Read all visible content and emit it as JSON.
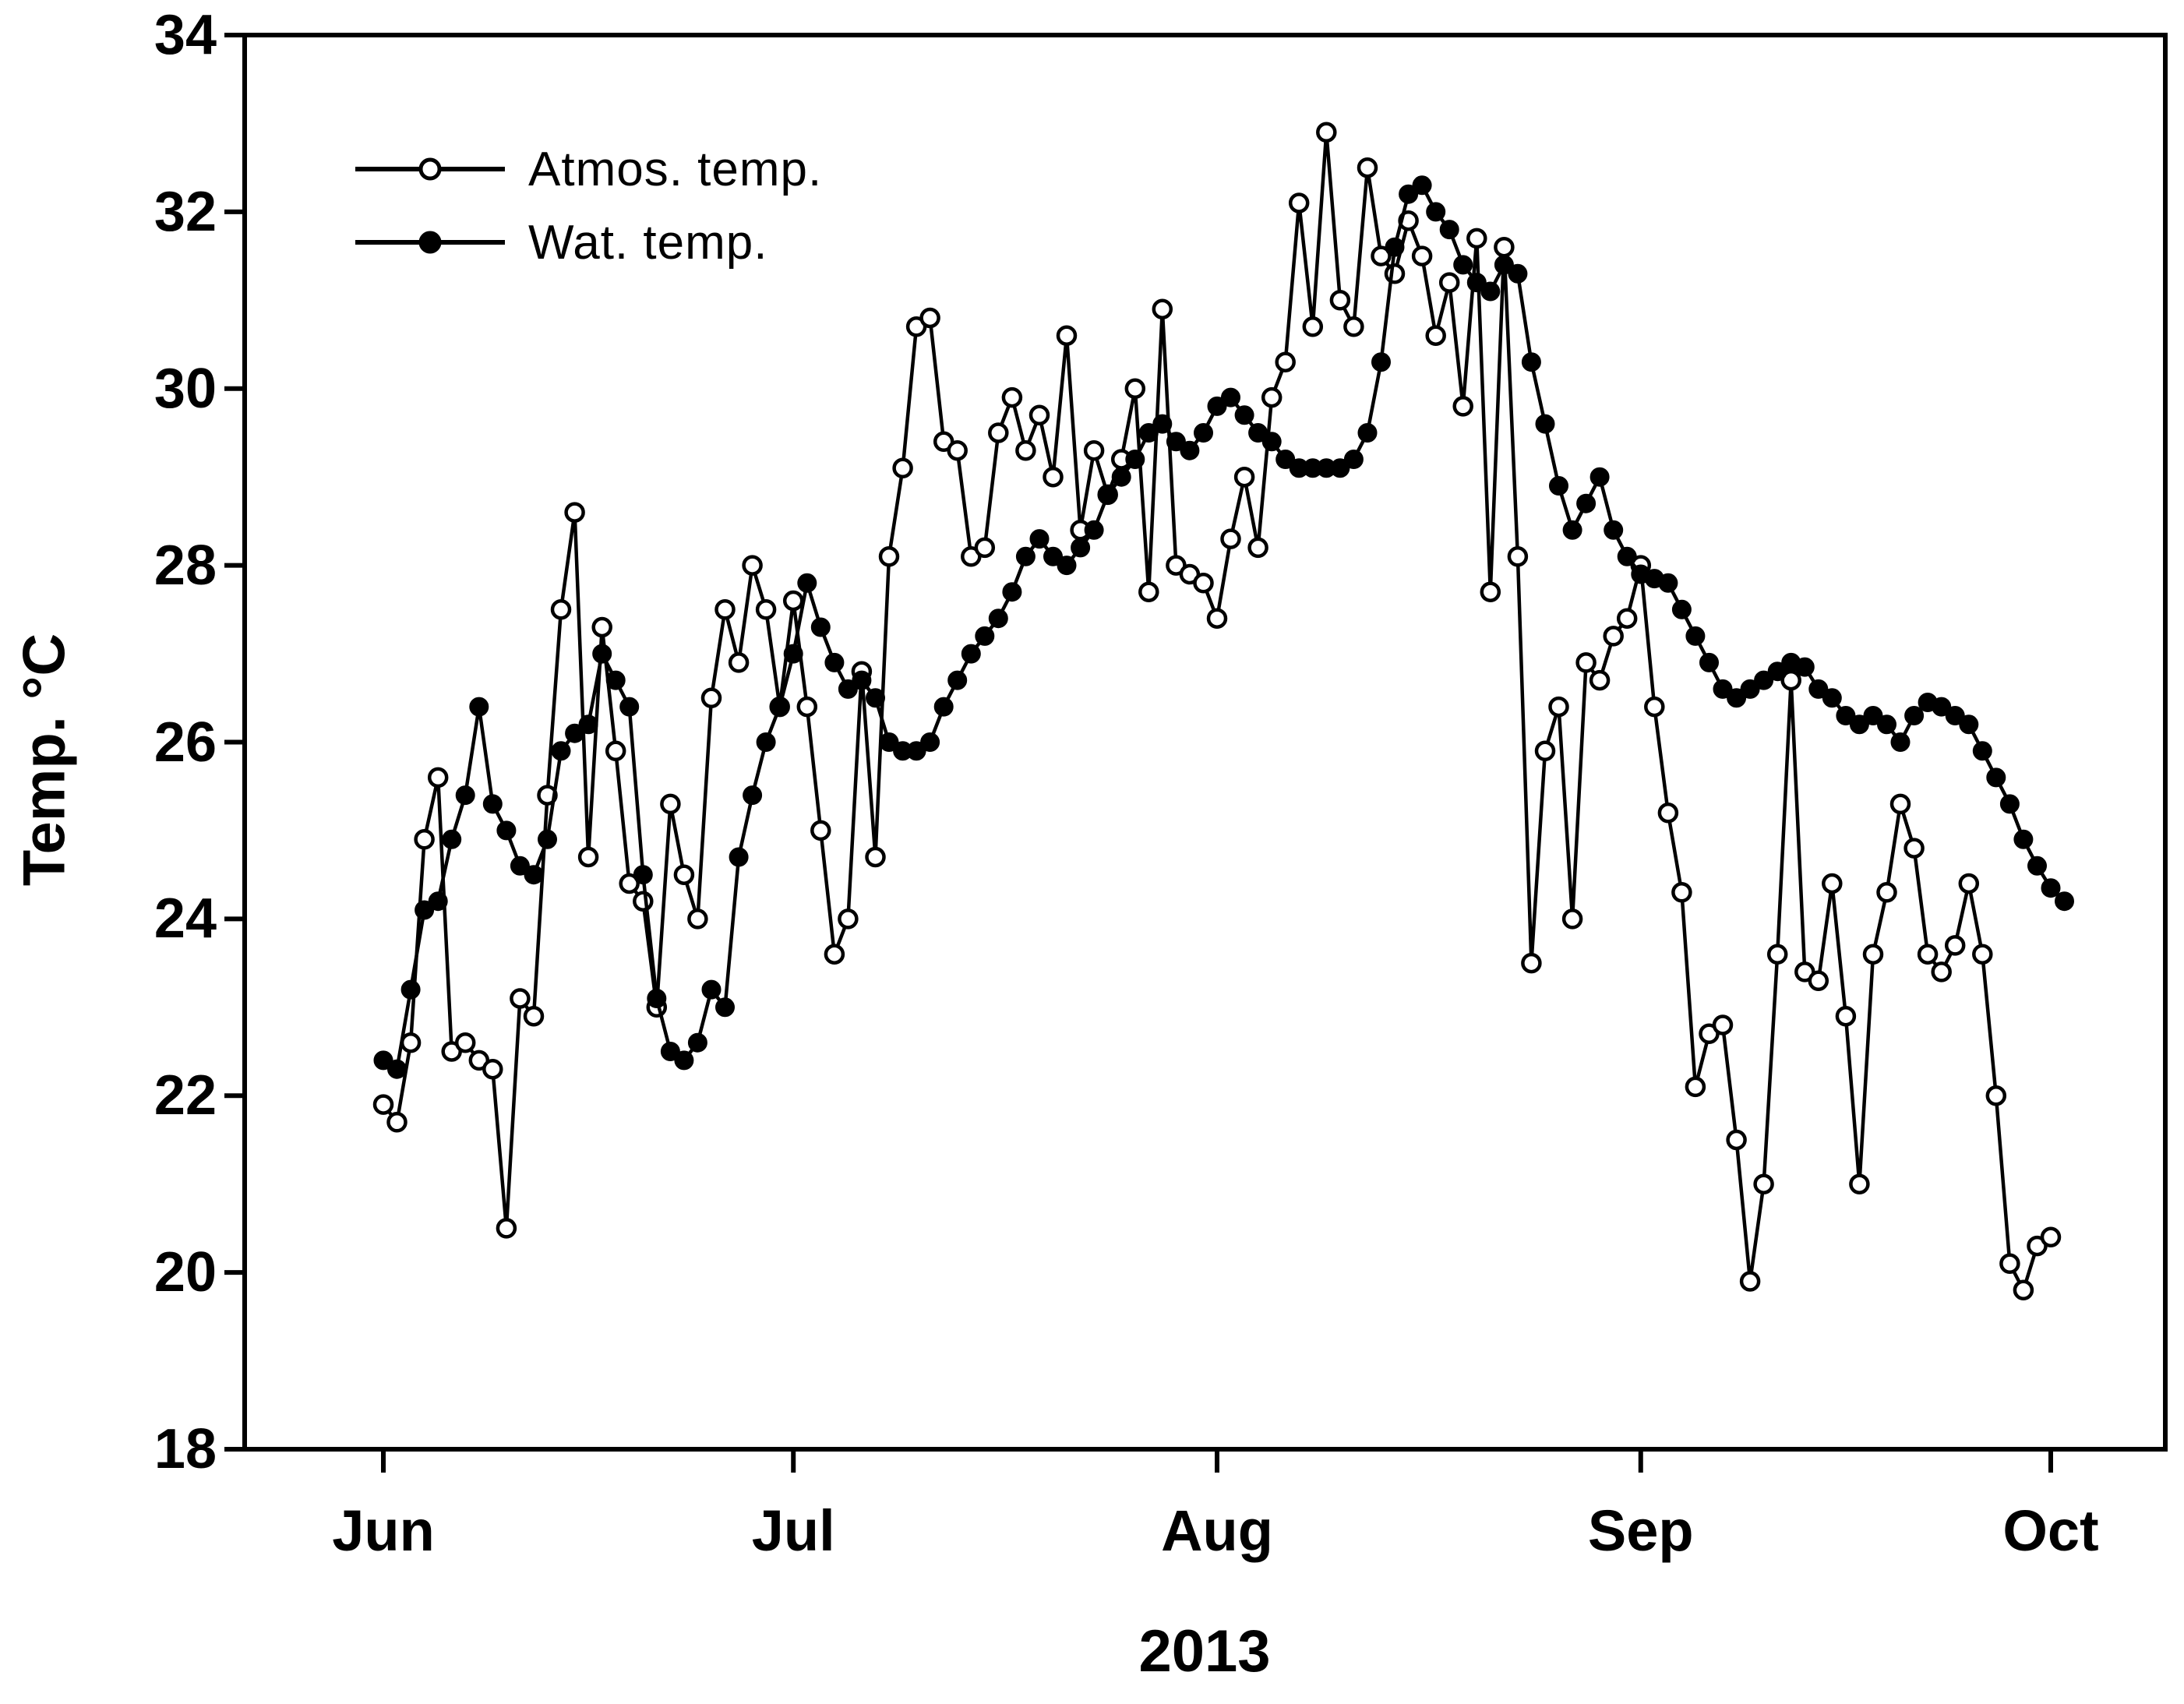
{
  "chart_data": {
    "type": "line",
    "title": "",
    "xlabel_year": "2013",
    "ylabel": "Temp. °C",
    "x_tick_labels": [
      "Jun",
      "Jul",
      "Aug",
      "Sep",
      "Oct"
    ],
    "x_tick_days": [
      0,
      30,
      61,
      92,
      122
    ],
    "x_unit": "daily observations starting Jun 1, 2013 (value index = days since Jun 1)",
    "ylim": [
      18,
      34
    ],
    "y_ticks": [
      34,
      32,
      30,
      28,
      26,
      24,
      22,
      20,
      18
    ],
    "grid": false,
    "background_color": "#ffffff",
    "axis_color": "#000000",
    "legend_position": "upper-left-inside",
    "series": [
      {
        "name": "Atmos. temp.",
        "marker": "open-circle",
        "color": "#000000",
        "values": [
          21.9,
          21.7,
          22.6,
          24.9,
          25.6,
          22.5,
          22.6,
          22.4,
          22.3,
          20.5,
          23.1,
          22.9,
          25.4,
          27.5,
          28.6,
          24.7,
          27.3,
          25.9,
          24.4,
          24.2,
          23.0,
          25.3,
          24.5,
          24.0,
          26.5,
          27.5,
          26.9,
          28.0,
          27.5,
          26.4,
          27.6,
          26.4,
          25.0,
          23.6,
          24.0,
          26.8,
          24.7,
          28.1,
          29.1,
          30.7,
          30.8,
          29.4,
          29.3,
          28.1,
          28.2,
          29.5,
          29.9,
          29.3,
          29.7,
          29.0,
          30.6,
          28.4,
          29.3,
          28.8,
          29.2,
          30.0,
          27.7,
          30.9,
          28.0,
          27.9,
          27.8,
          27.4,
          28.3,
          29.0,
          28.2,
          29.9,
          30.3,
          32.1,
          30.7,
          32.9,
          31.0,
          30.7,
          32.5,
          31.5,
          31.3,
          31.9,
          31.5,
          30.6,
          31.2,
          29.8,
          31.7,
          27.7,
          31.6,
          28.1,
          23.5,
          25.9,
          26.4,
          24.0,
          26.9,
          26.7,
          27.2,
          27.4,
          28.0,
          26.4,
          25.2,
          24.3,
          22.1,
          22.7,
          22.8,
          21.5,
          19.9,
          21.0,
          23.6,
          26.7,
          23.4,
          23.3,
          24.4,
          22.9,
          21.0,
          23.6,
          24.3,
          25.3,
          24.8,
          23.6,
          23.4,
          23.7,
          24.4,
          23.6,
          22.0,
          20.1,
          19.8,
          20.3,
          20.4
        ]
      },
      {
        "name": "Wat. temp.",
        "marker": "filled-circle",
        "color": "#000000",
        "values": [
          22.4,
          22.3,
          23.2,
          24.1,
          24.2,
          24.9,
          25.4,
          26.4,
          25.3,
          25.0,
          24.6,
          24.5,
          24.9,
          25.9,
          26.1,
          26.2,
          27.0,
          26.7,
          26.4,
          24.5,
          23.1,
          22.5,
          22.4,
          22.6,
          23.2,
          23.0,
          24.7,
          25.4,
          26.0,
          26.4,
          27.0,
          27.8,
          27.3,
          26.9,
          26.6,
          26.7,
          26.5,
          26.0,
          25.9,
          25.9,
          26.0,
          26.4,
          26.7,
          27.0,
          27.2,
          27.4,
          27.7,
          28.1,
          28.3,
          28.1,
          28.0,
          28.2,
          28.4,
          28.8,
          29.0,
          29.2,
          29.5,
          29.6,
          29.4,
          29.3,
          29.5,
          29.8,
          29.9,
          29.7,
          29.5,
          29.4,
          29.2,
          29.1,
          29.1,
          29.1,
          29.1,
          29.2,
          29.5,
          30.3,
          31.6,
          32.2,
          32.3,
          32.0,
          31.8,
          31.4,
          31.2,
          31.1,
          31.4,
          31.3,
          30.3,
          29.6,
          28.9,
          28.4,
          28.7,
          29.0,
          28.4,
          28.1,
          27.9,
          27.85,
          27.8,
          27.5,
          27.2,
          26.9,
          26.6,
          26.5,
          26.6,
          26.7,
          26.8,
          26.9,
          26.85,
          26.6,
          26.5,
          26.3,
          26.2,
          26.3,
          26.2,
          26.0,
          26.3,
          26.45,
          26.4,
          26.3,
          26.2,
          25.9,
          25.6,
          25.3,
          24.9,
          24.6,
          24.35,
          24.2
        ]
      }
    ]
  }
}
